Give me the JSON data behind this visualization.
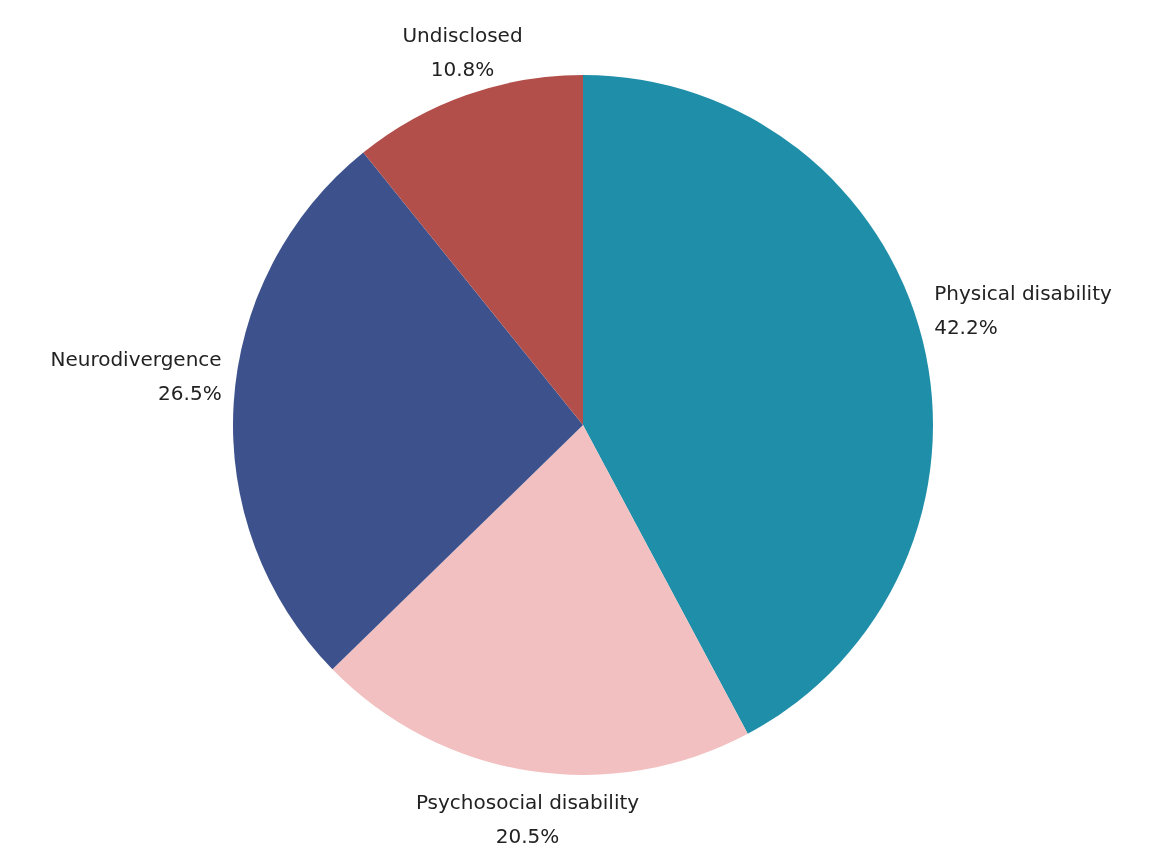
{
  "chart_data": {
    "type": "pie",
    "categories": [
      "Physical disability",
      "Psychosocial disability",
      "Neurodivergence",
      "Undisclosed"
    ],
    "values": [
      42.2,
      20.5,
      26.5,
      10.8
    ],
    "colors": [
      "#1f8ea8",
      "#f2c0c0",
      "#3d528c",
      "#b24f4a"
    ],
    "value_labels": [
      "42.2%",
      "20.5%",
      "26.5%",
      "10.8%"
    ]
  }
}
